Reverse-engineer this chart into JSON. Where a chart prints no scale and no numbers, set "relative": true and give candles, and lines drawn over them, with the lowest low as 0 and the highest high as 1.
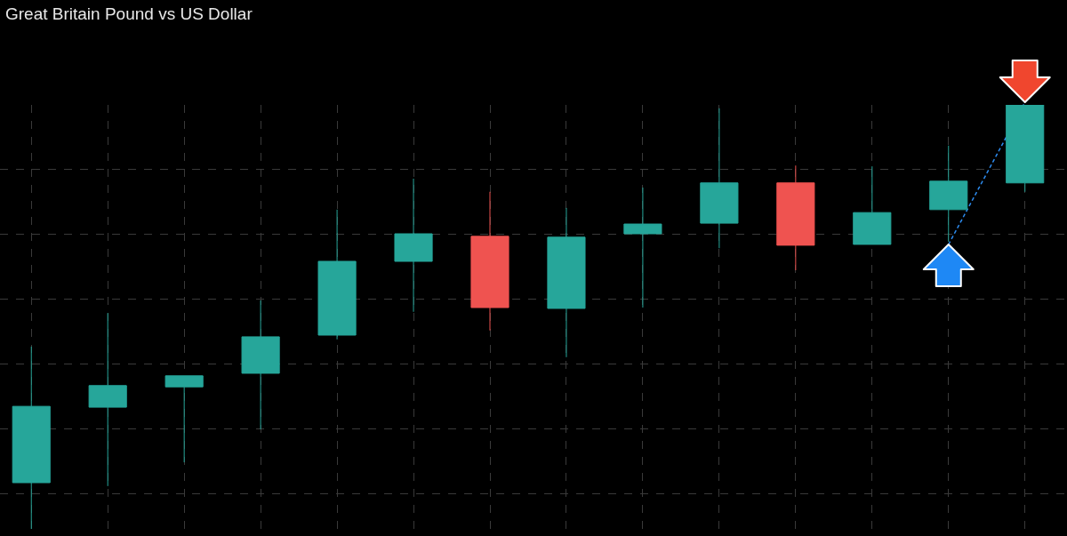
{
  "chart_data": {
    "type": "candlestick",
    "title": "Great Britain Pound vs US Dollar",
    "relative": true,
    "categories": [
      null,
      null,
      null,
      null,
      null,
      null,
      null,
      null,
      null,
      null,
      null,
      null,
      null,
      null
    ],
    "ohlc": [
      [
        0.109,
        0.43,
        0,
        0.289
      ],
      [
        0.287,
        0.509,
        0.101,
        0.338
      ],
      [
        0.335,
        0.361,
        0.157,
        0.361
      ],
      [
        0.367,
        0.539,
        0.235,
        0.453
      ],
      [
        0.457,
        0.753,
        0.447,
        0.631
      ],
      [
        0.631,
        0.826,
        0.512,
        0.696
      ],
      [
        0.69,
        0.795,
        0.468,
        0.522
      ],
      [
        0.52,
        0.757,
        0.405,
        0.688
      ],
      [
        0.696,
        0.805,
        0.522,
        0.719
      ],
      [
        0.721,
        0.992,
        0.662,
        0.816
      ],
      [
        0.816,
        0.857,
        0.61,
        0.669
      ],
      [
        0.671,
        0.855,
        0.671,
        0.746
      ],
      [
        0.753,
        0.904,
        0.677,
        0.82
      ],
      [
        0.816,
        1,
        0.795,
        1
      ]
    ],
    "colors": [
      "#26a69a",
      "#26a69a",
      "#26a69a",
      "#26a69a",
      "#26a69a",
      "#26a69a",
      "#ef5350",
      "#26a69a",
      "#26a69a",
      "#26a69a",
      "#ef5350",
      "#26a69a",
      "#26a69a",
      "#26a69a"
    ],
    "grid": true,
    "tick_labels": false
  }
}
